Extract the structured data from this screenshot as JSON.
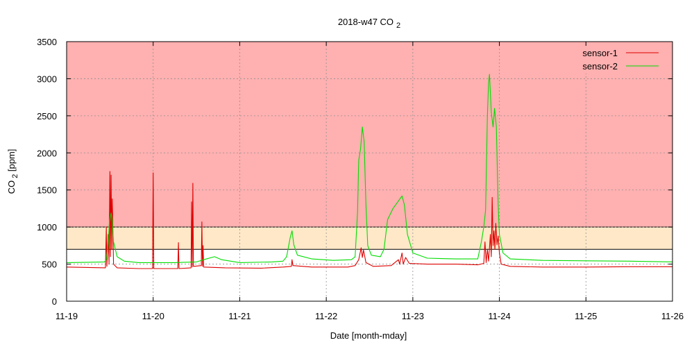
{
  "chart_data": {
    "type": "line",
    "title": "2018-w47 CO",
    "title_sub": "2",
    "xlabel": "Date [month-mday]",
    "ylabel_main": "CO",
    "ylabel_sub": "2",
    "ylabel_unit": " [ppm]",
    "ylim": [
      0,
      3500
    ],
    "xlim": [
      "2018-11-19",
      "2018-11-26"
    ],
    "y_ticks": [
      0,
      500,
      1000,
      1500,
      2000,
      2500,
      3000,
      3500
    ],
    "x_ticks": [
      "11-19",
      "11-20",
      "11-21",
      "11-22",
      "11-23",
      "11-24",
      "11-25",
      "11-26"
    ],
    "grid": true,
    "legend_position": "top-right",
    "bands": [
      {
        "from": 1000,
        "to": 3500,
        "color": "#ffb0b0"
      },
      {
        "from": 700,
        "to": 1000,
        "color": "#ffe8c8"
      }
    ],
    "series": [
      {
        "name": "sensor-1",
        "color": "#dd0000",
        "points": [
          [
            "2018-11-19 00:00",
            460
          ],
          [
            "2018-11-19 06:00",
            455
          ],
          [
            "2018-11-19 10:45",
            450
          ],
          [
            "2018-11-19 11:00",
            1000
          ],
          [
            "2018-11-19 11:10",
            470
          ],
          [
            "2018-11-19 11:30",
            900
          ],
          [
            "2018-11-19 11:45",
            500
          ],
          [
            "2018-11-19 12:00",
            1750
          ],
          [
            "2018-11-19 12:10",
            600
          ],
          [
            "2018-11-19 12:20",
            1700
          ],
          [
            "2018-11-19 12:30",
            700
          ],
          [
            "2018-11-19 12:40",
            1380
          ],
          [
            "2018-11-19 13:00",
            500
          ],
          [
            "2018-11-19 14:00",
            450
          ],
          [
            "2018-11-19 20:00",
            440
          ],
          [
            "2018-11-19 23:50",
            440
          ],
          [
            "2018-11-20 00:00",
            1730
          ],
          [
            "2018-11-20 00:10",
            440
          ],
          [
            "2018-11-20 06:50",
            440
          ],
          [
            "2018-11-20 07:00",
            790
          ],
          [
            "2018-11-20 07:10",
            440
          ],
          [
            "2018-11-20 10:30",
            450
          ],
          [
            "2018-11-20 10:40",
            1340
          ],
          [
            "2018-11-20 10:50",
            460
          ],
          [
            "2018-11-20 11:00",
            1590
          ],
          [
            "2018-11-20 11:10",
            470
          ],
          [
            "2018-11-20 13:20",
            480
          ],
          [
            "2018-11-20 13:30",
            1070
          ],
          [
            "2018-11-20 13:40",
            470
          ],
          [
            "2018-11-20 13:50",
            750
          ],
          [
            "2018-11-20 14:00",
            460
          ],
          [
            "2018-11-20 20:00",
            450
          ],
          [
            "2018-11-21 06:00",
            445
          ],
          [
            "2018-11-21 12:00",
            460
          ],
          [
            "2018-11-21 14:20",
            470
          ],
          [
            "2018-11-21 14:30",
            560
          ],
          [
            "2018-11-21 14:45",
            480
          ],
          [
            "2018-11-21 20:00",
            460
          ],
          [
            "2018-11-22 06:00",
            460
          ],
          [
            "2018-11-22 08:00",
            480
          ],
          [
            "2018-11-22 09:00",
            560
          ],
          [
            "2018-11-22 09:40",
            720
          ],
          [
            "2018-11-22 10:00",
            590
          ],
          [
            "2018-11-22 10:20",
            690
          ],
          [
            "2018-11-22 11:00",
            520
          ],
          [
            "2018-11-22 13:00",
            470
          ],
          [
            "2018-11-22 18:00",
            480
          ],
          [
            "2018-11-22 20:00",
            560
          ],
          [
            "2018-11-22 20:20",
            500
          ],
          [
            "2018-11-22 21:00",
            650
          ],
          [
            "2018-11-22 21:20",
            500
          ],
          [
            "2018-11-22 22:00",
            590
          ],
          [
            "2018-11-22 23:00",
            510
          ],
          [
            "2018-11-23 04:00",
            500
          ],
          [
            "2018-11-23 12:00",
            500
          ],
          [
            "2018-11-23 18:00",
            490
          ],
          [
            "2018-11-23 19:40",
            510
          ],
          [
            "2018-11-23 20:00",
            800
          ],
          [
            "2018-11-23 20:20",
            520
          ],
          [
            "2018-11-23 20:40",
            700
          ],
          [
            "2018-11-23 21:00",
            540
          ],
          [
            "2018-11-23 21:30",
            900
          ],
          [
            "2018-11-23 21:45",
            600
          ],
          [
            "2018-11-23 22:00",
            1400
          ],
          [
            "2018-11-23 22:15",
            750
          ],
          [
            "2018-11-23 22:30",
            950
          ],
          [
            "2018-11-23 22:45",
            700
          ],
          [
            "2018-11-23 23:00",
            1050
          ],
          [
            "2018-11-23 23:20",
            760
          ],
          [
            "2018-11-23 23:40",
            880
          ],
          [
            "2018-11-24 00:00",
            650
          ],
          [
            "2018-11-24 00:30",
            500
          ],
          [
            "2018-11-24 03:00",
            470
          ],
          [
            "2018-11-24 12:00",
            460
          ],
          [
            "2018-11-25 00:00",
            460
          ],
          [
            "2018-11-25 12:00",
            465
          ],
          [
            "2018-11-26 00:00",
            465
          ]
        ]
      },
      {
        "name": "sensor-2",
        "color": "#00dd00",
        "points": [
          [
            "2018-11-19 00:00",
            520
          ],
          [
            "2018-11-19 06:00",
            525
          ],
          [
            "2018-11-19 10:30",
            530
          ],
          [
            "2018-11-19 11:00",
            560
          ],
          [
            "2018-11-19 11:30",
            750
          ],
          [
            "2018-11-19 11:50",
            1050
          ],
          [
            "2018-11-19 12:20",
            1190
          ],
          [
            "2018-11-19 12:40",
            1070
          ],
          [
            "2018-11-19 13:00",
            800
          ],
          [
            "2018-11-19 14:00",
            600
          ],
          [
            "2018-11-19 16:00",
            540
          ],
          [
            "2018-11-19 20:00",
            520
          ],
          [
            "2018-11-20 06:00",
            520
          ],
          [
            "2018-11-20 12:00",
            530
          ],
          [
            "2018-11-20 14:00",
            560
          ],
          [
            "2018-11-20 17:00",
            600
          ],
          [
            "2018-11-20 19:00",
            560
          ],
          [
            "2018-11-21 00:00",
            520
          ],
          [
            "2018-11-21 09:00",
            530
          ],
          [
            "2018-11-21 12:00",
            540
          ],
          [
            "2018-11-21 13:00",
            600
          ],
          [
            "2018-11-21 14:00",
            860
          ],
          [
            "2018-11-21 14:30",
            950
          ],
          [
            "2018-11-21 15:00",
            760
          ],
          [
            "2018-11-21 16:00",
            620
          ],
          [
            "2018-11-21 20:00",
            570
          ],
          [
            "2018-11-22 02:00",
            550
          ],
          [
            "2018-11-22 07:00",
            560
          ],
          [
            "2018-11-22 08:00",
            600
          ],
          [
            "2018-11-22 08:40",
            1200
          ],
          [
            "2018-11-22 09:00",
            1900
          ],
          [
            "2018-11-22 09:30",
            2050
          ],
          [
            "2018-11-22 10:00",
            2350
          ],
          [
            "2018-11-22 10:30",
            2150
          ],
          [
            "2018-11-22 11:00",
            1300
          ],
          [
            "2018-11-22 11:30",
            750
          ],
          [
            "2018-11-22 12:30",
            620
          ],
          [
            "2018-11-22 15:00",
            600
          ],
          [
            "2018-11-22 16:00",
            700
          ],
          [
            "2018-11-22 17:00",
            1100
          ],
          [
            "2018-11-22 18:30",
            1250
          ],
          [
            "2018-11-22 20:00",
            1350
          ],
          [
            "2018-11-22 21:00",
            1420
          ],
          [
            "2018-11-22 21:40",
            1300
          ],
          [
            "2018-11-22 22:30",
            900
          ],
          [
            "2018-11-23 00:00",
            650
          ],
          [
            "2018-11-23 04:00",
            580
          ],
          [
            "2018-11-23 12:00",
            570
          ],
          [
            "2018-11-23 18:00",
            570
          ],
          [
            "2018-11-23 19:00",
            800
          ],
          [
            "2018-11-23 19:40",
            1000
          ],
          [
            "2018-11-23 20:10",
            1230
          ],
          [
            "2018-11-23 20:40",
            2500
          ],
          [
            "2018-11-23 21:00",
            2950
          ],
          [
            "2018-11-23 21:15",
            3060
          ],
          [
            "2018-11-23 21:45",
            2550
          ],
          [
            "2018-11-23 22:15",
            2350
          ],
          [
            "2018-11-23 22:40",
            2600
          ],
          [
            "2018-11-23 23:10",
            2350
          ],
          [
            "2018-11-23 23:40",
            1300
          ],
          [
            "2018-11-24 00:00",
            900
          ],
          [
            "2018-11-24 01:00",
            650
          ],
          [
            "2018-11-24 03:00",
            570
          ],
          [
            "2018-11-24 12:00",
            550
          ],
          [
            "2018-11-25 00:00",
            545
          ],
          [
            "2018-11-25 12:00",
            540
          ],
          [
            "2018-11-26 00:00",
            530
          ]
        ]
      }
    ]
  }
}
